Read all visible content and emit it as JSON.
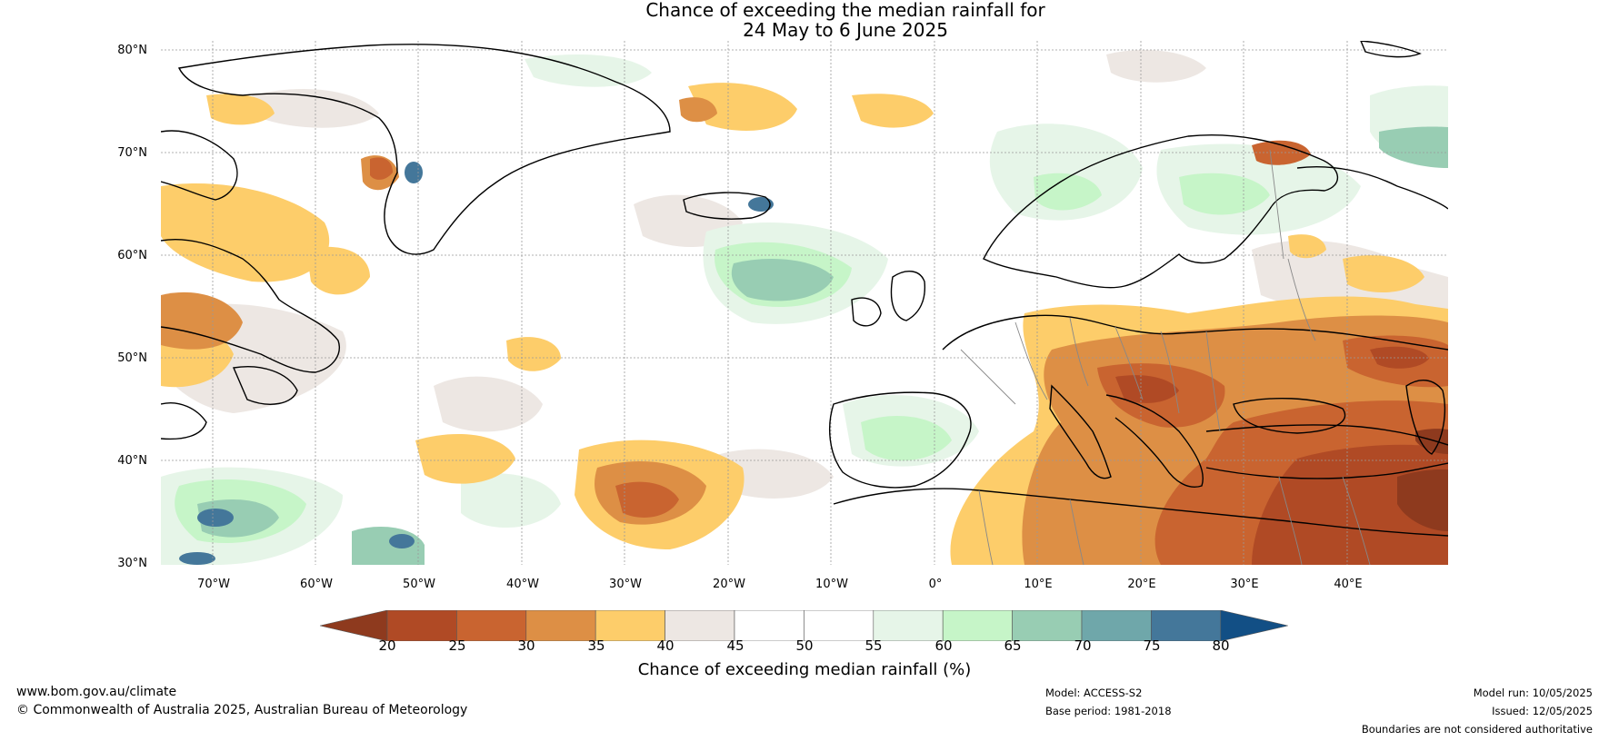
{
  "title_line1": "Chance of exceeding the median rainfall for",
  "title_line2": "24 May to 6 June 2025",
  "lat_labels": [
    "80°N",
    "70°N",
    "60°N",
    "50°N",
    "40°N",
    "30°N"
  ],
  "lon_labels": [
    "70°W",
    "60°W",
    "50°W",
    "40°W",
    "30°W",
    "20°W",
    "10°W",
    "0°",
    "10°E",
    "20°E",
    "30°E",
    "40°E"
  ],
  "colorbar": {
    "label": "Chance of exceeding median rainfall (%)",
    "ticks": [
      "20",
      "25",
      "30",
      "35",
      "40",
      "45",
      "50",
      "55",
      "60",
      "65",
      "70",
      "75",
      "80"
    ],
    "colors": {
      "below20": "#8e3a1e",
      "bins": [
        "#b04a25",
        "#c96430",
        "#dd8f45",
        "#fdcd6a",
        "#ede7e3",
        "#ffffff",
        "#ffffff",
        "#e6f5e8",
        "#c6f5c8",
        "#98cdb3",
        "#6fa7aa",
        "#44779a"
      ],
      "above80": "#124f85"
    }
  },
  "footer": {
    "website": "www.bom.gov.au/climate",
    "copyright": "© Commonwealth of Australia 2025, Australian Bureau of Meteorology",
    "model": "Model: ACCESS-S2",
    "base_period": "Base period: 1981-2018",
    "model_run": "Model run: 10/05/2025",
    "issued": "Issued: 12/05/2025",
    "disclaimer": "Boundaries are not considered authoritative"
  }
}
